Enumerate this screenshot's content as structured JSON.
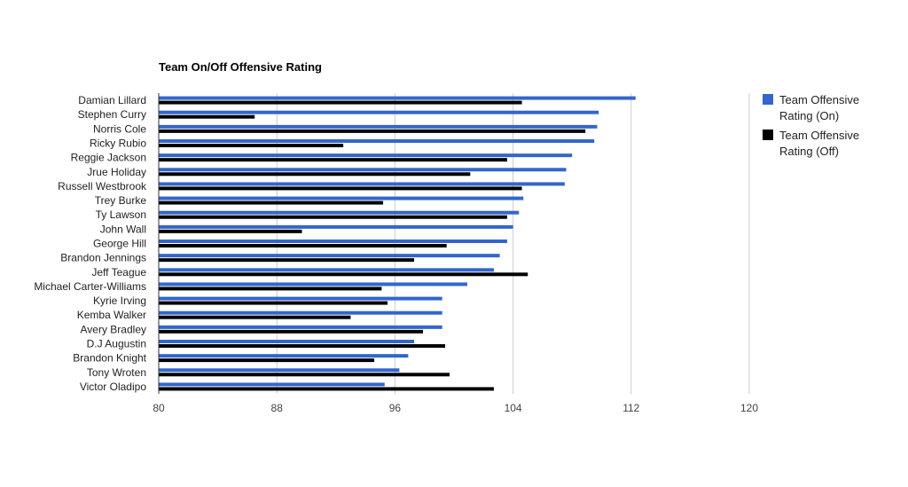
{
  "chart_data": {
    "type": "bar",
    "orientation": "horizontal",
    "title": "Team On/Off Offensive Rating",
    "xlabel": "",
    "ylabel": "",
    "xlim": [
      80,
      120
    ],
    "xticks": [
      "80",
      "88",
      "96",
      "104",
      "112",
      "120"
    ],
    "grid": true,
    "legend_position": "right",
    "categories": [
      "Damian Lillard",
      "Stephen Curry",
      "Norris Cole",
      "Ricky Rubio",
      "Reggie Jackson",
      "Jrue Holiday",
      "Russell Westbrook",
      "Trey Burke",
      "Ty Lawson",
      "John Wall",
      "George Hill",
      "Brandon Jennings",
      "Jeff Teague",
      "Michael Carter-Williams",
      "Kyrie Irving",
      "Kemba Walker",
      "Avery Bradley",
      "D.J Augustin",
      "Brandon Knight",
      "Tony Wroten",
      "Victor Oladipo"
    ],
    "series": [
      {
        "name": "Team Offensive Rating (On)",
        "legend_lines": [
          "Team Offensive",
          "Rating (On)"
        ],
        "color": "#3366cc",
        "values": [
          112.3,
          109.8,
          109.7,
          109.5,
          108.0,
          107.6,
          107.5,
          104.7,
          104.4,
          104.0,
          103.6,
          103.1,
          102.7,
          100.9,
          99.2,
          99.2,
          99.2,
          97.3,
          96.9,
          96.3,
          95.3
        ]
      },
      {
        "name": "Team Offensive Rating (Off)",
        "legend_lines": [
          "Team Offensive",
          "Rating (Off)"
        ],
        "color": "#000000",
        "values": [
          104.6,
          86.5,
          108.9,
          92.5,
          103.6,
          101.1,
          104.6,
          95.2,
          103.6,
          89.7,
          99.5,
          97.3,
          105.0,
          95.1,
          95.5,
          93.0,
          97.9,
          99.4,
          94.6,
          99.7,
          102.7
        ]
      }
    ]
  }
}
